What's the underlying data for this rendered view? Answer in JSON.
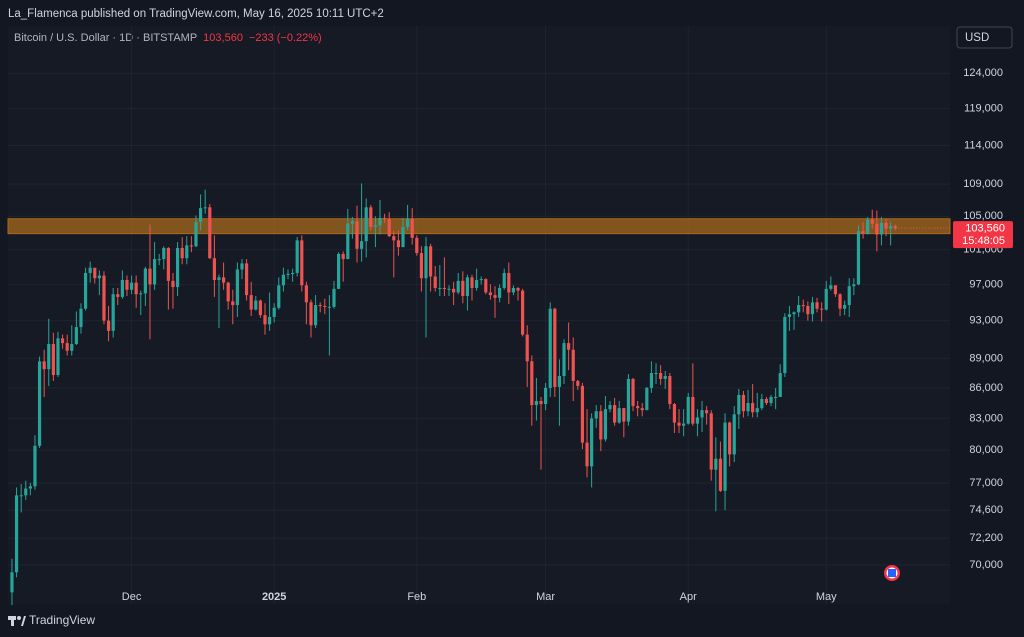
{
  "header": {
    "published": "La_Flamenca published on TradingView.com, May 16, 2025 10:11 UTC+2",
    "symbol": "Bitcoin / U.S. Dollar · 1D · BITSTAMP",
    "price": "103,560",
    "change": "−233 (−0.22%)",
    "currency": "USD"
  },
  "footer": {
    "brand": "TradingView"
  },
  "chart_data": {
    "type": "candlestick",
    "log": true,
    "grid": true,
    "up_color": "#26a69a",
    "down_color": "#ef5350",
    "countdown": "15:48:05",
    "zone": {
      "low": 102900,
      "high": 104700,
      "color": "#a8691c"
    },
    "xlim": [
      -2.6,
      203.9
    ],
    "xticks": [
      {
        "value": 26,
        "label": "Dec"
      },
      {
        "value": 57,
        "label": "2025"
      },
      {
        "value": 88,
        "label": "Feb"
      },
      {
        "value": 116,
        "label": "Mar"
      },
      {
        "value": 147,
        "label": "Apr"
      },
      {
        "value": 177,
        "label": "May"
      }
    ],
    "ylim": [
      67200,
      127400
    ],
    "yticks": [
      {
        "value": 70000,
        "label": "70,000"
      },
      {
        "value": 72200,
        "label": "72,200"
      },
      {
        "value": 74600,
        "label": "74,600"
      },
      {
        "value": 77000,
        "label": "77,000"
      },
      {
        "value": 80000,
        "label": "80,000"
      },
      {
        "value": 83000,
        "label": "83,000"
      },
      {
        "value": 86000,
        "label": "86,000"
      },
      {
        "value": 89000,
        "label": "89,000"
      },
      {
        "value": 93000,
        "label": "93,000"
      },
      {
        "value": 97000,
        "label": "97,000"
      },
      {
        "value": 101000,
        "label": "101,000"
      },
      {
        "value": 105000,
        "label": "105,000"
      },
      {
        "value": 109000,
        "label": "109,000"
      },
      {
        "value": 114000,
        "label": "114,000"
      },
      {
        "value": 119000,
        "label": "119,000"
      },
      {
        "value": 124000,
        "label": "124,000"
      }
    ],
    "open": [
      67800,
      69400,
      75900,
      75900,
      76500,
      76700,
      80400,
      88700,
      87900,
      90500,
      87300,
      91100,
      90600,
      89800,
      90500,
      92300,
      94300,
      98300,
      98900,
      97700,
      98000,
      93000,
      91900,
      95900,
      95600,
      97500,
      96400,
      97200,
      95900,
      96000,
      98800,
      97000,
      99900,
      99900,
      101200,
      97400,
      96700,
      101200,
      100000,
      101500,
      101400,
      104300,
      106000,
      106100,
      100000,
      97500,
      97800,
      97200,
      95100,
      94700,
      98700,
      99400,
      95800,
      94200,
      95200,
      93600,
      92600,
      93400,
      94400,
      96900,
      98100,
      98200,
      98300,
      102100,
      96900,
      95000,
      92500,
      94700,
      94600,
      94500,
      94500,
      96500,
      100500,
      99900,
      104100,
      104400,
      101100,
      102000,
      106100,
      103700,
      103900,
      104800,
      104700,
      102600,
      102100,
      101300,
      103700,
      104700,
      102400,
      100600,
      97700,
      101400,
      97900,
      96600,
      96600,
      96500,
      96500,
      96100,
      97400,
      95700,
      97800,
      96600,
      97500,
      97600,
      96100,
      95800,
      95500,
      96600,
      98300,
      96100,
      96600,
      96300,
      91500,
      88700,
      84300,
      84700,
      84400,
      86000,
      94300,
      86100,
      87200,
      90600,
      89900,
      86700,
      86200,
      80700,
      78500,
      83000,
      83700,
      81000,
      83900,
      84300,
      82600,
      84000,
      82700,
      86900,
      84200,
      84000,
      83800,
      86000,
      87500,
      87500,
      86900,
      87200,
      84400,
      82600,
      82300,
      82500,
      85100,
      82500,
      83100,
      83800,
      83500,
      78200,
      79200,
      76300,
      82600,
      79600,
      83400,
      85300,
      83700,
      84500,
      83600,
      84000,
      84900,
      84500,
      85100,
      85100,
      87500,
      93400,
      93700,
      93900,
      94700,
      94600,
      93700,
      95000,
      94300,
      94200,
      96500,
      96900,
      95900,
      94300,
      94700,
      96800,
      97000,
      103200,
      102900,
      104600,
      104100,
      102800,
      104200,
      103500,
      103793
    ],
    "high": [
      70500,
      76600,
      76900,
      77200,
      77000,
      81400,
      89200,
      89900,
      93200,
      91700,
      91800,
      91500,
      91500,
      92500,
      94000,
      94900,
      98900,
      99600,
      98700,
      98600,
      98500,
      94600,
      96600,
      96600,
      98600,
      98000,
      98000,
      98000,
      96300,
      99000,
      104000,
      101900,
      100500,
      101400,
      101300,
      98300,
      101900,
      102500,
      102600,
      102600,
      105100,
      107700,
      108300,
      106500,
      102700,
      98100,
      99500,
      97300,
      96400,
      99500,
      99900,
      99900,
      97300,
      95700,
      95300,
      94900,
      96100,
      94900,
      97800,
      98900,
      98700,
      98800,
      102500,
      102700,
      97300,
      95300,
      95800,
      95000,
      95400,
      95800,
      97400,
      100700,
      100800,
      105900,
      104900,
      106300,
      109100,
      107200,
      106400,
      105000,
      107000,
      105300,
      105500,
      103200,
      103300,
      104800,
      106400,
      106000,
      102700,
      101400,
      102500,
      101700,
      99100,
      99200,
      100100,
      96900,
      97300,
      98300,
      98500,
      98100,
      98100,
      98800,
      97900,
      97700,
      97000,
      96800,
      97000,
      98800,
      99500,
      96900,
      96700,
      96500,
      92500,
      89300,
      87000,
      85100,
      86500,
      95000,
      94400,
      88900,
      91000,
      92800,
      91200,
      86800,
      86500,
      83900,
      83500,
      84300,
      84300,
      85200,
      84700,
      85000,
      84700,
      84000,
      87400,
      87000,
      84700,
      84500,
      86100,
      88700,
      88500,
      88300,
      87700,
      87500,
      84500,
      83900,
      83900,
      85500,
      88500,
      83900,
      84700,
      84200,
      83800,
      81200,
      80800,
      83500,
      82700,
      84200,
      85900,
      85700,
      85800,
      86400,
      85500,
      85400,
      85100,
      85300,
      86000,
      88400,
      93800,
      94600,
      94000,
      95700,
      95300,
      95100,
      95600,
      95500,
      95000,
      97400,
      97900,
      96900,
      96000,
      95200,
      97700,
      97700,
      103900,
      104300,
      104900,
      105800,
      105700,
      104900,
      104700,
      104300,
      104000
    ],
    "low": [
      66800,
      69000,
      74400,
      75500,
      75900,
      76400,
      80200,
      85100,
      86200,
      86700,
      87100,
      90000,
      89300,
      89300,
      90400,
      91600,
      94100,
      97200,
      97100,
      95800,
      92600,
      90800,
      91200,
      94700,
      95400,
      95700,
      95900,
      94400,
      93600,
      94600,
      91000,
      96400,
      99200,
      98700,
      94200,
      94300,
      95700,
      99300,
      99300,
      100700,
      101300,
      103300,
      105300,
      99900,
      95600,
      92200,
      96400,
      94200,
      92600,
      93400,
      97600,
      95200,
      93500,
      94100,
      93300,
      91500,
      91900,
      92800,
      94200,
      96200,
      97600,
      97300,
      97900,
      96200,
      92600,
      91200,
      92200,
      93900,
      93700,
      89300,
      94300,
      96500,
      97300,
      99900,
      102300,
      99500,
      99600,
      100100,
      103300,
      101300,
      102800,
      104200,
      102500,
      97800,
      100300,
      101300,
      103300,
      101600,
      100300,
      96200,
      91200,
      96200,
      96200,
      95700,
      95700,
      95700,
      94700,
      95900,
      94900,
      94100,
      95200,
      96300,
      97000,
      95900,
      95300,
      93300,
      95000,
      96400,
      94800,
      95800,
      95200,
      91300,
      86100,
      82300,
      82800,
      78200,
      83800,
      85100,
      85100,
      82300,
      86400,
      87800,
      84700,
      85800,
      80100,
      77500,
      76600,
      82100,
      79900,
      80800,
      83600,
      82300,
      82500,
      81200,
      82300,
      83700,
      83200,
      83200,
      83800,
      85500,
      86400,
      86300,
      85900,
      83900,
      81600,
      81600,
      81300,
      82400,
      82300,
      81300,
      81700,
      82400,
      77200,
      74500,
      76200,
      74600,
      78500,
      78900,
      82000,
      83100,
      83200,
      83100,
      83100,
      83800,
      84300,
      84200,
      83900,
      85100,
      87100,
      91900,
      92000,
      93400,
      93900,
      93000,
      92900,
      93900,
      92900,
      94100,
      96300,
      95600,
      93500,
      93600,
      93400,
      95800,
      96900,
      102300,
      102800,
      103500,
      100800,
      101500,
      102600,
      101500,
      103300
    ],
    "close": [
      69400,
      75900,
      75900,
      76500,
      76700,
      80400,
      88700,
      87900,
      90500,
      87300,
      91100,
      90600,
      89800,
      90500,
      92300,
      94300,
      98300,
      98900,
      97700,
      98000,
      93000,
      91900,
      95900,
      95600,
      97500,
      96400,
      97200,
      95900,
      96000,
      98800,
      97000,
      99900,
      99900,
      101200,
      97400,
      96700,
      101200,
      100000,
      101500,
      101400,
      104300,
      106000,
      106100,
      100000,
      97500,
      97800,
      97200,
      95100,
      94700,
      98700,
      99400,
      95800,
      94200,
      95200,
      93600,
      92600,
      93400,
      94400,
      96900,
      98100,
      98200,
      98300,
      102100,
      96900,
      95000,
      92500,
      94700,
      94600,
      94500,
      94500,
      96500,
      100500,
      99900,
      104100,
      104400,
      101100,
      102000,
      106100,
      103700,
      103900,
      104800,
      104700,
      102600,
      102100,
      101300,
      103700,
      104700,
      102400,
      100600,
      97700,
      101400,
      97900,
      96600,
      96600,
      96500,
      96500,
      96100,
      97400,
      95700,
      97800,
      96600,
      97500,
      97600,
      96100,
      95800,
      95500,
      96600,
      98300,
      96100,
      96600,
      96300,
      91500,
      88700,
      84300,
      84700,
      84400,
      86000,
      94300,
      86100,
      87200,
      90600,
      89900,
      86700,
      86200,
      80700,
      78500,
      83000,
      83700,
      81000,
      83900,
      84300,
      82600,
      84000,
      82700,
      86900,
      84200,
      84000,
      83800,
      86000,
      87500,
      87500,
      86900,
      87200,
      84400,
      82600,
      82300,
      82500,
      85100,
      82500,
      83100,
      83800,
      83500,
      78200,
      79200,
      76300,
      82600,
      79600,
      83400,
      85300,
      83700,
      84500,
      83600,
      84000,
      84900,
      84500,
      85100,
      85100,
      87500,
      93400,
      93700,
      93900,
      94700,
      94600,
      93700,
      95000,
      94300,
      94200,
      96500,
      96900,
      95900,
      94300,
      94700,
      96800,
      97000,
      103200,
      102900,
      104600,
      104100,
      102800,
      104200,
      103500,
      103793,
      103560
    ]
  }
}
